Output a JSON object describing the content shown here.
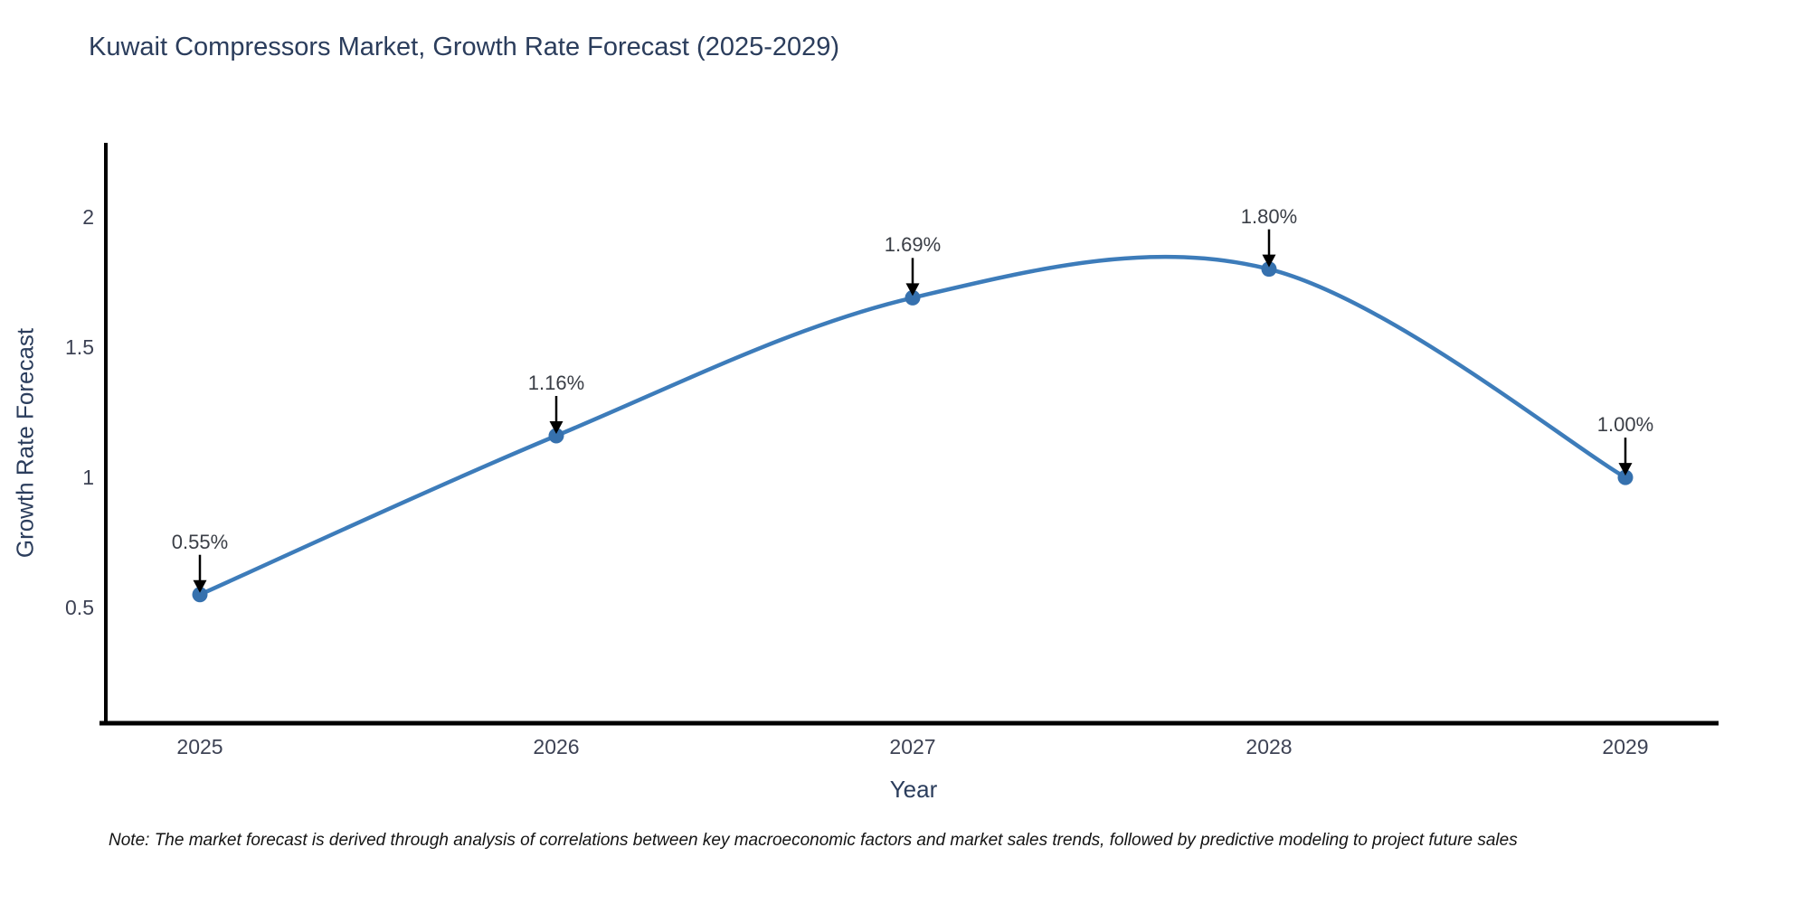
{
  "chart_data": {
    "type": "line",
    "title": "Kuwait Compressors Market, Growth Rate Forecast (2025-2029)",
    "xlabel": "Year",
    "ylabel": "Growth Rate Forecast",
    "categories": [
      "2025",
      "2026",
      "2027",
      "2028",
      "2029"
    ],
    "values": [
      0.55,
      1.16,
      1.69,
      1.8,
      1.0
    ],
    "point_labels": [
      "0.55%",
      "1.16%",
      "1.69%",
      "1.80%",
      "1.00%"
    ],
    "y_ticks": [
      0.5,
      1.0,
      1.5,
      2.0
    ],
    "y_tick_labels": [
      "0.5",
      "1",
      "1.5",
      "2"
    ],
    "ylim": [
      0.056,
      2.278
    ],
    "grid": false,
    "legend": "none",
    "line_color": "#3d7cba",
    "marker_color": "#3671ae",
    "spine_color": "#000000",
    "annotation_arrow_color": "#000000",
    "note": "Note: The market forecast is derived through analysis of correlations between key macroeconomic factors and market sales trends, followed by predictive modeling to project future sales"
  }
}
